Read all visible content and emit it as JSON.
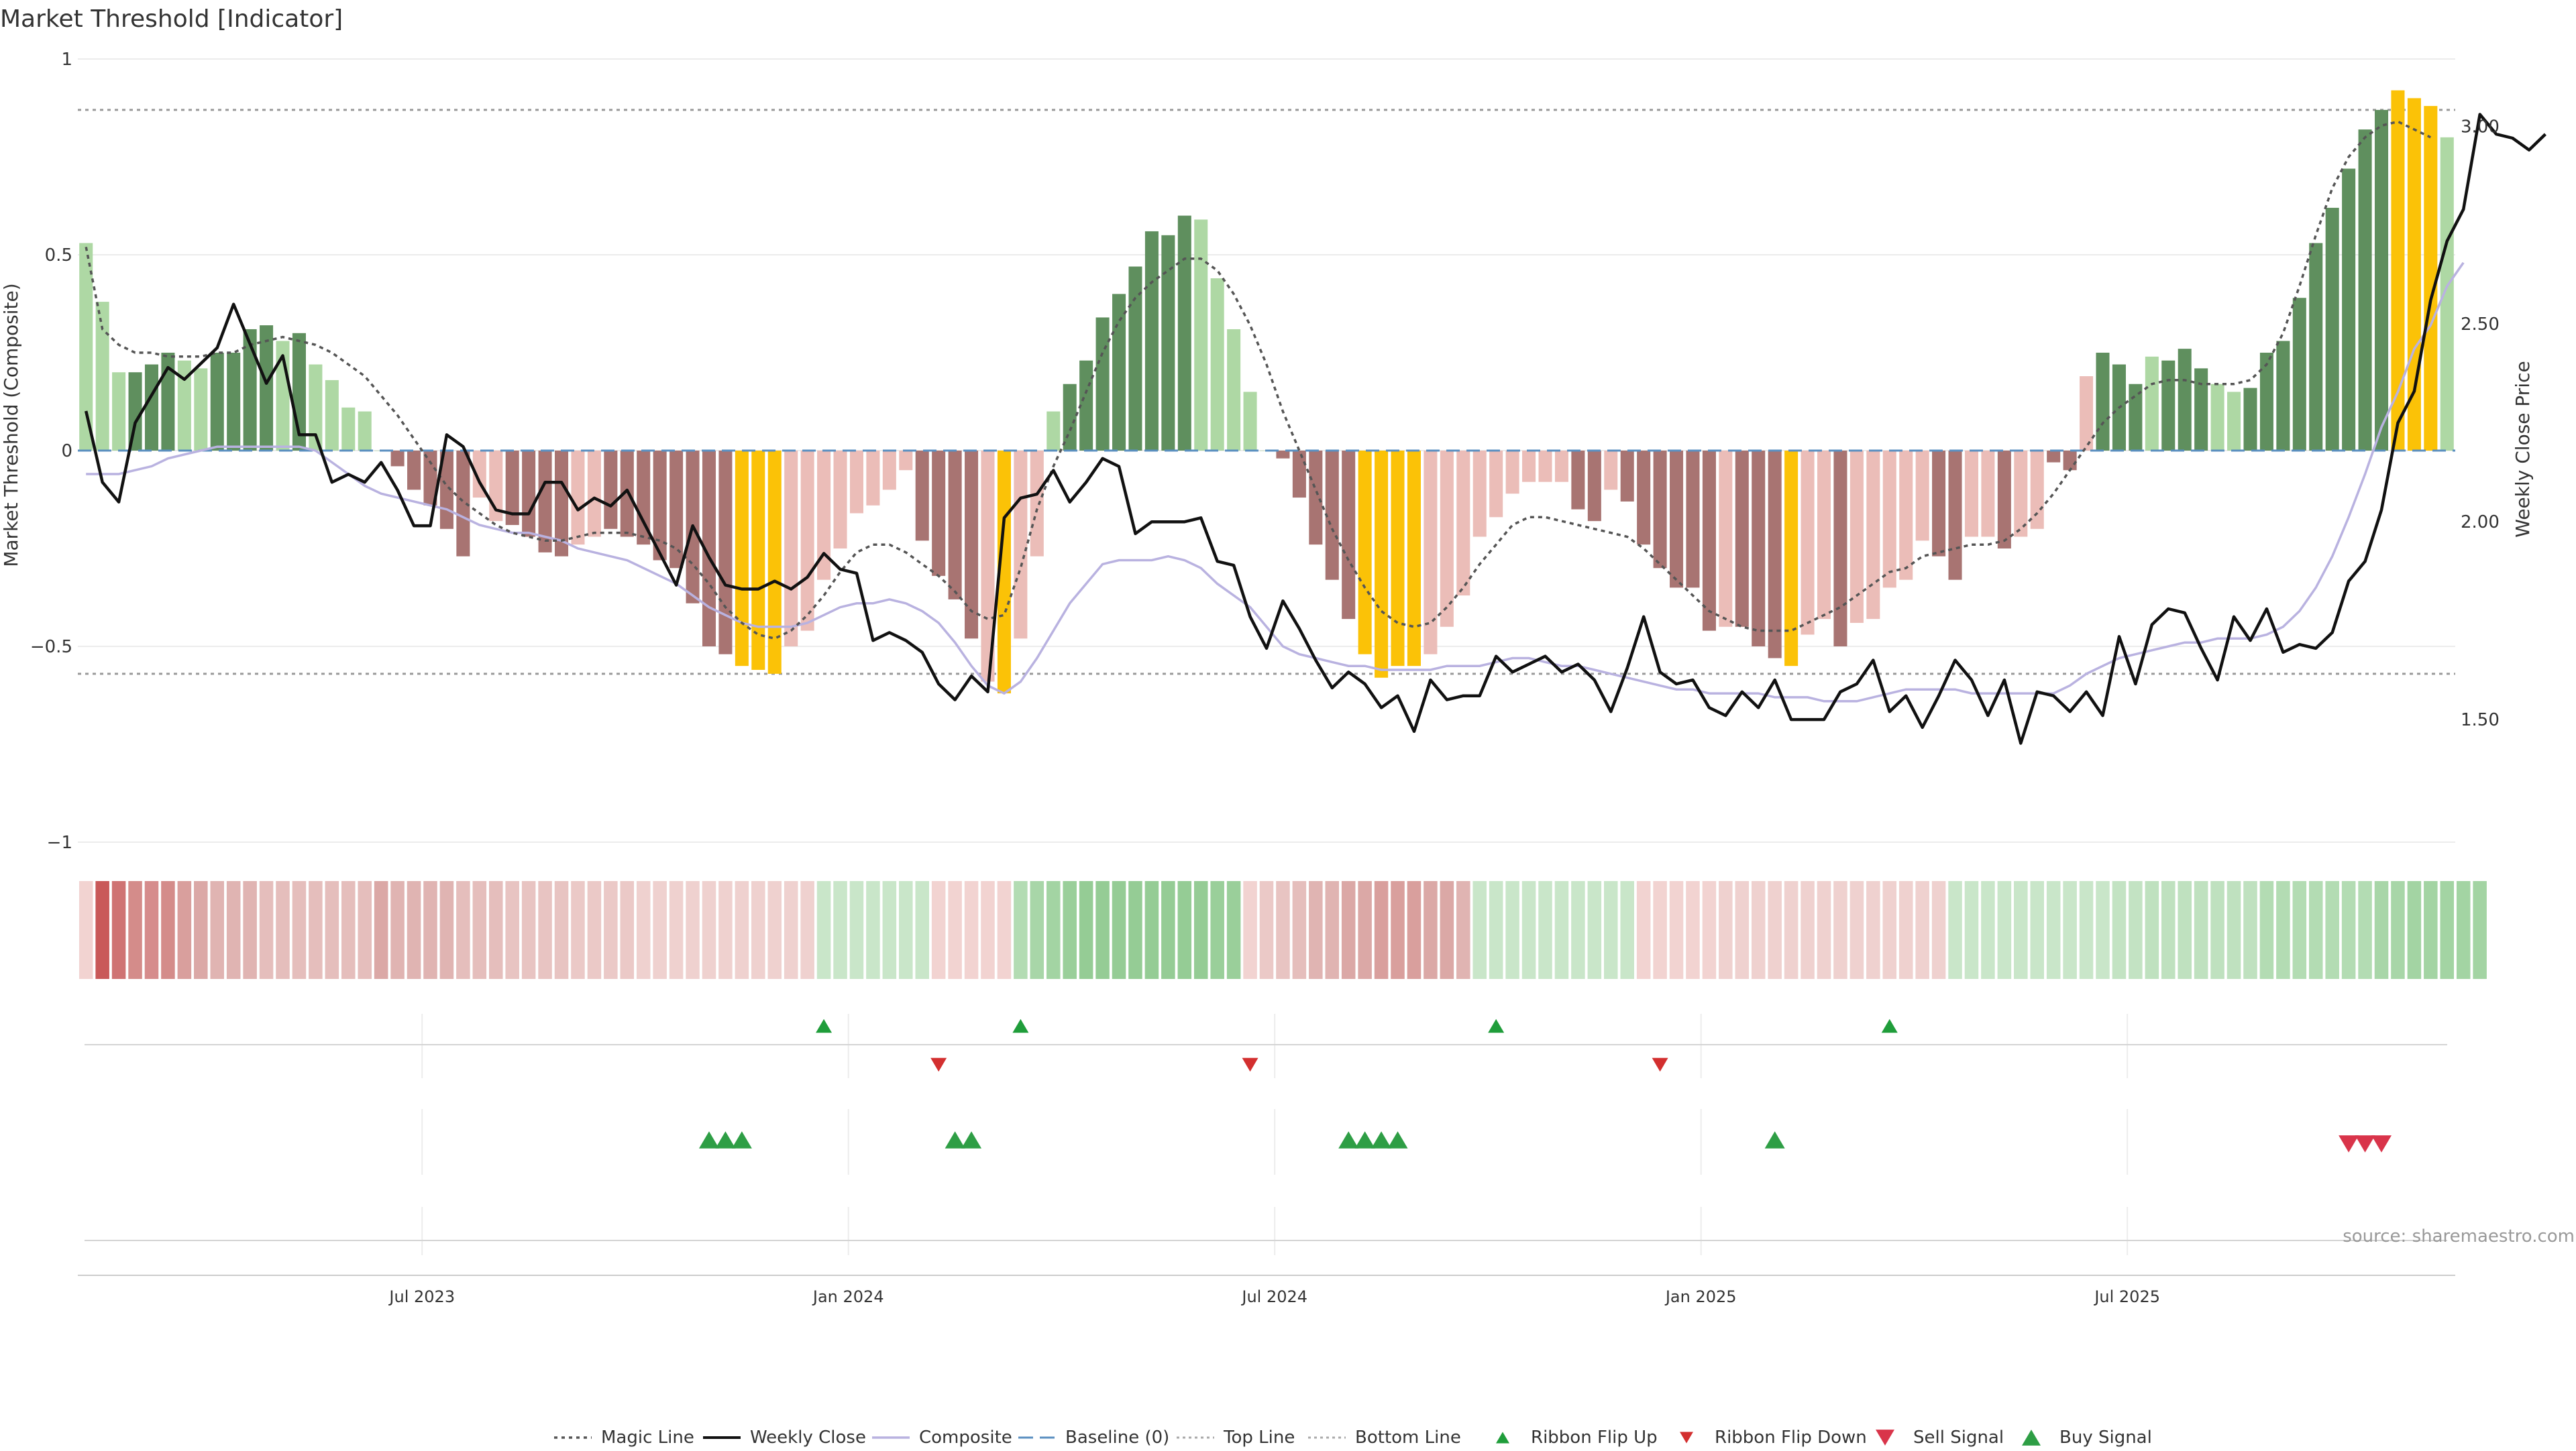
{
  "chart_data": {
    "type": "bar",
    "title": "Market Threshold [Indicator]",
    "ylabel": "Market Threshold (Composite)",
    "y2label": "Weekly Close Price",
    "ylim": [
      -1,
      1
    ],
    "y2lim": [
      1.19,
      3.17
    ],
    "y_ticks": [
      1,
      0.5,
      0,
      -0.5,
      -1
    ],
    "y_tick_labels": [
      "1",
      "0.5",
      "0",
      "−0.5",
      "−1"
    ],
    "y2_ticks": [
      3.0,
      2.5,
      2.0,
      1.5
    ],
    "y2_tick_labels": [
      "3.00",
      "2.50",
      "2.00",
      "1.50"
    ],
    "x_tick_labels": [
      "Jul 2023",
      "Jan 2024",
      "Jul 2024",
      "Jan 2025",
      "Jul 2025"
    ],
    "x_tick_weeks": [
      21,
      47,
      73,
      99,
      125
    ],
    "top_line": 0.87,
    "bottom_line": -0.57,
    "composite": [
      0.53,
      0.38,
      0.2,
      0.2,
      0.22,
      0.25,
      0.23,
      0.21,
      0.25,
      0.25,
      0.31,
      0.32,
      0.28,
      0.3,
      0.22,
      0.18,
      0.11,
      0.1,
      0,
      -0.04,
      -0.1,
      -0.14,
      -0.2,
      -0.27,
      -0.12,
      -0.18,
      -0.19,
      -0.22,
      -0.26,
      -0.27,
      -0.24,
      -0.22,
      -0.2,
      -0.22,
      -0.24,
      -0.28,
      -0.3,
      -0.39,
      -0.5,
      -0.52,
      -0.55,
      -0.56,
      -0.57,
      -0.5,
      -0.46,
      -0.33,
      -0.25,
      -0.16,
      -0.14,
      -0.1,
      -0.05,
      -0.23,
      -0.32,
      -0.38,
      -0.48,
      -0.59,
      -0.62,
      -0.48,
      -0.27,
      0.1,
      0.17,
      0.23,
      0.34,
      0.4,
      0.47,
      0.56,
      0.55,
      0.6,
      0.59,
      0.44,
      0.31,
      0.15,
      0,
      -0.02,
      -0.12,
      -0.24,
      -0.33,
      -0.43,
      -0.52,
      -0.58,
      -0.55,
      -0.55,
      -0.52,
      -0.45,
      -0.37,
      -0.22,
      -0.17,
      -0.11,
      -0.08,
      -0.08,
      -0.08,
      -0.15,
      -0.18,
      -0.1,
      -0.13,
      -0.24,
      -0.3,
      -0.35,
      -0.35,
      -0.46,
      -0.45,
      -0.45,
      -0.5,
      -0.53,
      -0.55,
      -0.47,
      -0.43,
      -0.5,
      -0.44,
      -0.43,
      -0.35,
      -0.33,
      -0.23,
      -0.27,
      -0.33,
      -0.22,
      -0.22,
      -0.25,
      -0.22,
      -0.2,
      -0.03,
      -0.05,
      0.19,
      0.25,
      0.22,
      0.17,
      0.24,
      0.23,
      0.26,
      0.21,
      0.17,
      0.15,
      0.16,
      0.25,
      0.28,
      0.39,
      0.53,
      0.62,
      0.72,
      0.82,
      0.87,
      0.92,
      0.9,
      0.88,
      0.8
    ],
    "bar_colors": [
      "#aed8a4",
      "#aed8a4",
      "#aed8a4",
      "#5f8f5e",
      "#5f8f5e",
      "#5f8f5e",
      "#aed8a4",
      "#aed8a4",
      "#5f8f5e",
      "#5f8f5e",
      "#5f8f5e",
      "#5f8f5e",
      "#aed8a4",
      "#5f8f5e",
      "#aed8a4",
      "#aed8a4",
      "#aed8a4",
      "#aed8a4",
      "#aed8a4",
      "#a87472",
      "#a87472",
      "#a87472",
      "#a87472",
      "#a87472",
      "#ebbdb8",
      "#ebbdb8",
      "#a87472",
      "#a87472",
      "#a87472",
      "#a87472",
      "#ebbdb8",
      "#ebbdb8",
      "#a87472",
      "#a87472",
      "#a87472",
      "#a87472",
      "#a87472",
      "#a87472",
      "#a87472",
      "#a87472",
      "#fbc207",
      "#fbc207",
      "#fbc207",
      "#ebbdb8",
      "#ebbdb8",
      "#ebbdb8",
      "#ebbdb8",
      "#ebbdb8",
      "#ebbdb8",
      "#ebbdb8",
      "#ebbdb8",
      "#a87472",
      "#a87472",
      "#a87472",
      "#a87472",
      "#ebbdb8",
      "#fbc207",
      "#ebbdb8",
      "#ebbdb8",
      "#aed8a4",
      "#5f8f5e",
      "#5f8f5e",
      "#5f8f5e",
      "#5f8f5e",
      "#5f8f5e",
      "#5f8f5e",
      "#5f8f5e",
      "#5f8f5e",
      "#aed8a4",
      "#aed8a4",
      "#aed8a4",
      "#aed8a4",
      "#aed8a4",
      "#a87472",
      "#a87472",
      "#a87472",
      "#a87472",
      "#a87472",
      "#fbc207",
      "#fbc207",
      "#fbc207",
      "#fbc207",
      "#ebbdb8",
      "#ebbdb8",
      "#ebbdb8",
      "#ebbdb8",
      "#ebbdb8",
      "#ebbdb8",
      "#ebbdb8",
      "#ebbdb8",
      "#ebbdb8",
      "#a87472",
      "#a87472",
      "#ebbdb8",
      "#a87472",
      "#a87472",
      "#a87472",
      "#a87472",
      "#a87472",
      "#a87472",
      "#ebbdb8",
      "#a87472",
      "#a87472",
      "#a87472",
      "#fbc207",
      "#ebbdb8",
      "#ebbdb8",
      "#a87472",
      "#ebbdb8",
      "#ebbdb8",
      "#ebbdb8",
      "#ebbdb8",
      "#ebbdb8",
      "#a87472",
      "#a87472",
      "#ebbdb8",
      "#ebbdb8",
      "#a87472",
      "#ebbdb8",
      "#ebbdb8",
      "#a87472",
      "#a87472",
      "#ebbdb8",
      "#5f8f5e",
      "#5f8f5e",
      "#5f8f5e",
      "#aed8a4",
      "#5f8f5e",
      "#5f8f5e",
      "#5f8f5e",
      "#aed8a4",
      "#aed8a4",
      "#5f8f5e",
      "#5f8f5e",
      "#5f8f5e",
      "#5f8f5e",
      "#5f8f5e",
      "#5f8f5e",
      "#5f8f5e",
      "#5f8f5e",
      "#5f8f5e",
      "#fbc207",
      "#fbc207",
      "#fbc207",
      "#aed8a4",
      "#aed8a4"
    ],
    "magic_line": [
      0.52,
      0.31,
      0.27,
      0.25,
      0.25,
      0.24,
      0.24,
      0.24,
      0.25,
      0.25,
      0.27,
      0.28,
      0.29,
      0.28,
      0.27,
      0.25,
      0.22,
      0.19,
      0.14,
      0.09,
      0.03,
      -0.03,
      -0.09,
      -0.13,
      -0.16,
      -0.19,
      -0.21,
      -0.22,
      -0.23,
      -0.23,
      -0.22,
      -0.21,
      -0.21,
      -0.21,
      -0.22,
      -0.23,
      -0.25,
      -0.29,
      -0.34,
      -0.4,
      -0.44,
      -0.47,
      -0.48,
      -0.46,
      -0.42,
      -0.37,
      -0.31,
      -0.26,
      -0.24,
      -0.24,
      -0.26,
      -0.29,
      -0.32,
      -0.36,
      -0.41,
      -0.43,
      -0.42,
      -0.3,
      -0.15,
      -0.04,
      0.05,
      0.15,
      0.25,
      0.33,
      0.39,
      0.43,
      0.46,
      0.49,
      0.49,
      0.46,
      0.4,
      0.32,
      0.22,
      0.1,
      0,
      -0.1,
      -0.2,
      -0.28,
      -0.35,
      -0.41,
      -0.44,
      -0.45,
      -0.44,
      -0.4,
      -0.35,
      -0.29,
      -0.24,
      -0.19,
      -0.17,
      -0.17,
      -0.18,
      -0.19,
      -0.2,
      -0.21,
      -0.22,
      -0.25,
      -0.29,
      -0.33,
      -0.37,
      -0.41,
      -0.43,
      -0.45,
      -0.46,
      -0.46,
      -0.46,
      -0.44,
      -0.42,
      -0.4,
      -0.37,
      -0.34,
      -0.31,
      -0.3,
      -0.27,
      -0.26,
      -0.25,
      -0.24,
      -0.24,
      -0.23,
      -0.2,
      -0.16,
      -0.11,
      -0.05,
      0.01,
      0.07,
      0.11,
      0.14,
      0.17,
      0.18,
      0.18,
      0.17,
      0.17,
      0.17,
      0.18,
      0.22,
      0.3,
      0.42,
      0.55,
      0.67,
      0.75,
      0.8,
      0.83,
      0.84,
      0.82,
      0.8
    ],
    "weekly_close": [
      2.28,
      2.1,
      2.05,
      2.25,
      2.32,
      2.39,
      2.36,
      2.4,
      2.44,
      2.55,
      2.45,
      2.35,
      2.42,
      2.22,
      2.22,
      2.1,
      2.12,
      2.1,
      2.15,
      2.08,
      1.99,
      1.99,
      2.22,
      2.19,
      2.1,
      2.03,
      2.02,
      2.02,
      2.1,
      2.1,
      2.03,
      2.06,
      2.04,
      2.08,
      2.0,
      1.92,
      1.84,
      1.99,
      1.91,
      1.84,
      1.83,
      1.83,
      1.85,
      1.83,
      1.86,
      1.92,
      1.88,
      1.87,
      1.7,
      1.72,
      1.7,
      1.67,
      1.59,
      1.55,
      1.61,
      1.57,
      2.01,
      2.06,
      2.07,
      2.13,
      2.05,
      2.1,
      2.16,
      2.14,
      1.97,
      2.0,
      2.0,
      2.0,
      2.01,
      1.9,
      1.89,
      1.76,
      1.68,
      1.8,
      1.73,
      1.65,
      1.58,
      1.62,
      1.59,
      1.53,
      1.56,
      1.47,
      1.6,
      1.55,
      1.56,
      1.56,
      1.66,
      1.62,
      1.64,
      1.66,
      1.62,
      1.64,
      1.6,
      1.52,
      1.63,
      1.76,
      1.62,
      1.59,
      1.6,
      1.53,
      1.51,
      1.57,
      1.53,
      1.6,
      1.5,
      1.5,
      1.5,
      1.57,
      1.59,
      1.65,
      1.52,
      1.56,
      1.48,
      1.56,
      1.65,
      1.6,
      1.51,
      1.6,
      1.44,
      1.57,
      1.56,
      1.52,
      1.57,
      1.51,
      1.71,
      1.59,
      1.74,
      1.78,
      1.77,
      1.68,
      1.6,
      1.76,
      1.7,
      1.78,
      1.67,
      1.69,
      1.68,
      1.72,
      1.85,
      1.9,
      2.03,
      2.25,
      2.33,
      2.56,
      2.71,
      2.79,
      3.03,
      2.98,
      2.97,
      2.94,
      2.98
    ],
    "composite_smooth": [
      -0.06,
      -0.06,
      -0.06,
      -0.05,
      -0.04,
      -0.02,
      -0.01,
      0,
      0.01,
      0.01,
      0.01,
      0.01,
      0.01,
      0.01,
      0,
      -0.03,
      -0.06,
      -0.09,
      -0.11,
      -0.12,
      -0.13,
      -0.14,
      -0.15,
      -0.17,
      -0.19,
      -0.2,
      -0.21,
      -0.21,
      -0.22,
      -0.23,
      -0.25,
      -0.26,
      -0.27,
      -0.28,
      -0.3,
      -0.32,
      -0.34,
      -0.37,
      -0.4,
      -0.42,
      -0.44,
      -0.45,
      -0.45,
      -0.45,
      -0.44,
      -0.42,
      -0.4,
      -0.39,
      -0.39,
      -0.38,
      -0.39,
      -0.41,
      -0.44,
      -0.49,
      -0.55,
      -0.6,
      -0.62,
      -0.59,
      -0.53,
      -0.46,
      -0.39,
      -0.34,
      -0.29,
      -0.28,
      -0.28,
      -0.28,
      -0.27,
      -0.28,
      -0.3,
      -0.34,
      -0.37,
      -0.4,
      -0.45,
      -0.5,
      -0.52,
      -0.53,
      -0.54,
      -0.55,
      -0.55,
      -0.56,
      -0.56,
      -0.56,
      -0.56,
      -0.55,
      -0.55,
      -0.55,
      -0.54,
      -0.53,
      -0.53,
      -0.54,
      -0.55,
      -0.55,
      -0.56,
      -0.57,
      -0.58,
      -0.59,
      -0.6,
      -0.61,
      -0.61,
      -0.62,
      -0.62,
      -0.62,
      -0.62,
      -0.63,
      -0.63,
      -0.63,
      -0.64,
      -0.64,
      -0.64,
      -0.63,
      -0.62,
      -0.61,
      -0.61,
      -0.61,
      -0.61,
      -0.62,
      -0.62,
      -0.62,
      -0.62,
      -0.62,
      -0.62,
      -0.6,
      -0.57,
      -0.55,
      -0.53,
      -0.52,
      -0.51,
      -0.5,
      -0.49,
      -0.49,
      -0.48,
      -0.48,
      -0.48,
      -0.47,
      -0.45,
      -0.41,
      -0.35,
      -0.27,
      -0.17,
      -0.06,
      0.06,
      0.15,
      0.26,
      0.32,
      0.42,
      0.48
    ],
    "ribbon_colors": [
      "#f2d3d1",
      "#c95959",
      "#cf7373",
      "#d48c8a",
      "#d68c8c",
      "#d48c8a",
      "#d99f9d",
      "#dba8a6",
      "#e0b4b2",
      "#e0b4b2",
      "#e0b4b2",
      "#e5bebc",
      "#e5bebc",
      "#e5bebc",
      "#e5bebc",
      "#e5bebc",
      "#e5bebc",
      "#e5bebc",
      "#dba8a6",
      "#e0b4b2",
      "#e0b4b2",
      "#e0b4b2",
      "#e0b4b2",
      "#e5bebc",
      "#e5bebc",
      "#e5bebc",
      "#e8c4c2",
      "#e8c4c2",
      "#e8c4c2",
      "#e8c4c2",
      "#ebc9c7",
      "#ebc9c7",
      "#ebc9c7",
      "#ebc9c7",
      "#efd1cf",
      "#efd1cf",
      "#efd1cf",
      "#efd1cf",
      "#efd1cf",
      "#efd1cf",
      "#efd1cf",
      "#efd1cf",
      "#efd1cf",
      "#efd1cf",
      "#efd1cf",
      "#c9e6c9",
      "#c9e6c9",
      "#c9e6c9",
      "#c9e6c9",
      "#c9e6c9",
      "#c9e6c9",
      "#c9e6c9",
      "#f2d3d1",
      "#f2d3d1",
      "#f2d3d1",
      "#f2d3d1",
      "#f2d3d1",
      "#b3dcb3",
      "#a8d6a8",
      "#a3d4a3",
      "#9acf9a",
      "#95cc95",
      "#95cc95",
      "#95cc95",
      "#95cc95",
      "#95cc95",
      "#95cc95",
      "#95cc95",
      "#95cc95",
      "#9acf9a",
      "#9acf9a",
      "#f2d3d1",
      "#ebc9c7",
      "#e8c4c2",
      "#e5bebc",
      "#e0b4b2",
      "#e0b4b2",
      "#dba8a6",
      "#dba8a6",
      "#d99f9d",
      "#d99f9d",
      "#d99f9d",
      "#dba8a6",
      "#dba8a6",
      "#e0b4b2",
      "#c9e6c9",
      "#c9e6c9",
      "#c9e6c9",
      "#c9e6c9",
      "#c9e6c9",
      "#c9e6c9",
      "#c9e6c9",
      "#c9e6c9",
      "#c9e6c9",
      "#c9e6c9",
      "#f2d3d1",
      "#f2d3d1",
      "#f2d3d1",
      "#f2d3d1",
      "#f2d3d1",
      "#efd1cf",
      "#efd1cf",
      "#efd1cf",
      "#efd1cf",
      "#efd1cf",
      "#efd1cf",
      "#efd1cf",
      "#efd1cf",
      "#efd1cf",
      "#efd1cf",
      "#efd1cf",
      "#efd1cf",
      "#efd1cf",
      "#efd1cf",
      "#c9e6c9",
      "#c9e6c9",
      "#c9e6c9",
      "#c9e6c9",
      "#c9e6c9",
      "#c9e6c9",
      "#c9e6c9",
      "#c9e6c9",
      "#c9e6c9",
      "#c9e6c9",
      "#c3e3c3",
      "#c3e3c3",
      "#bfe1bf",
      "#bfe1bf",
      "#bfe1bf",
      "#bfe1bf",
      "#bfe1bf",
      "#bfe1bf",
      "#bfe1bf",
      "#b3dcb3",
      "#b3dcb3",
      "#b3dcb3",
      "#b3dcb3",
      "#b3dcb3",
      "#b3dcb3",
      "#b3dcb3",
      "#a8d6a8",
      "#a8d6a8",
      "#a3d4a3",
      "#a3d4a3",
      "#a3d4a3",
      "#a3d4a3",
      "#a3d4a3"
    ],
    "ribbon_flip_up_weeks": [
      45,
      57,
      86,
      110
    ],
    "ribbon_flip_down_weeks": [
      52,
      71,
      96
    ],
    "buy_signal_weeks": [
      38,
      39,
      40,
      53,
      54,
      77,
      78,
      79,
      80,
      103
    ],
    "sell_signal_weeks": [
      138,
      139,
      140
    ],
    "legend": [
      "Magic Line",
      "Weekly Close",
      "Composite",
      "Baseline (0)",
      "Top Line",
      "Bottom Line",
      "Ribbon Flip Up",
      "Ribbon Flip Down",
      "Sell Signal",
      "Buy Signal"
    ],
    "legend_position": "bottom-center",
    "source_note": "source: sharemaestro.com",
    "colors": {
      "strong_bull": "#5f8f5e",
      "weak_bull": "#aed8a4",
      "strong_bear": "#a87472",
      "weak_bear": "#ebbdb8",
      "extreme": "#fbc207",
      "weekly_close": "#111111",
      "magic_line": "#555555",
      "composite_line": "#b9b2e0",
      "baseline": "#5a8fc0",
      "threshold_line": "#999999",
      "flip_up": "#1f9d3a",
      "flip_down": "#d32f2f",
      "buy": "#2e9e45",
      "sell": "#d9344a"
    }
  }
}
